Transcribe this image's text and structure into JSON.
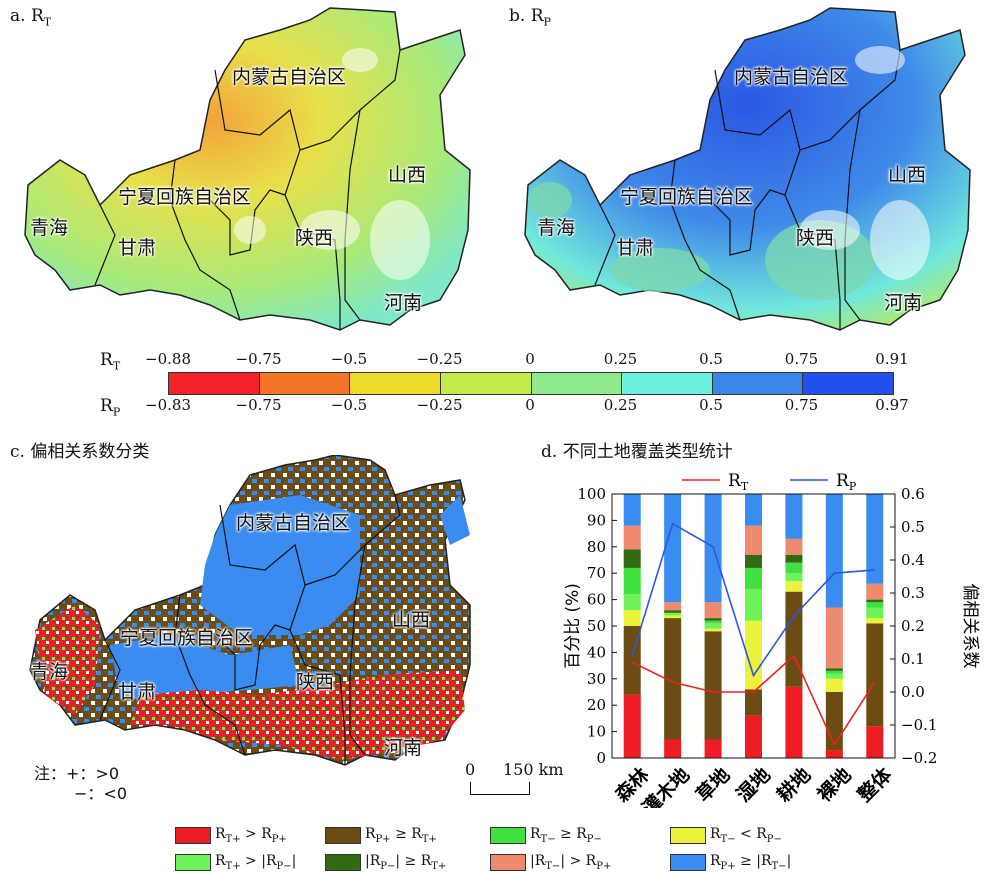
{
  "panels": {
    "a": {
      "label": "a. R",
      "sub": "T"
    },
    "b": {
      "label": "b. R",
      "sub": "P"
    },
    "c": {
      "label": "c. 偏相关系数分类"
    },
    "d": {
      "label": "d. 不同土地覆盖类型统计"
    }
  },
  "regions": {
    "neimenggu": "内蒙古自治区",
    "ningxia": "宁夏回族自治区",
    "qinghai": "青海",
    "gansu": "甘肃",
    "shaanxi": "陕西",
    "shanxi": "山西",
    "henan": "河南"
  },
  "colorbar": {
    "rt_label": "R",
    "rt_sub": "T",
    "rp_label": "R",
    "rp_sub": "P",
    "rt_ticks": [
      "−0.88",
      "−0.75",
      "−0.5",
      "−0.25",
      "0",
      "0.25",
      "0.5",
      "0.75",
      "0.91"
    ],
    "rp_ticks": [
      "−0.83",
      "−0.75",
      "−0.5",
      "−0.25",
      "0",
      "0.25",
      "0.5",
      "0.75",
      "0.97"
    ],
    "colors": [
      "#f2242a",
      "#f47428",
      "#eedc2c",
      "#c2ea4a",
      "#8eea8a",
      "#6ef0e0",
      "#3c86ea",
      "#2250ea"
    ]
  },
  "map_note": {
    "title": "注：",
    "plus": "+：>0",
    "minus": "−：<0"
  },
  "scale_bar": {
    "zero": "0",
    "value": "150 km"
  },
  "legend": [
    {
      "color": "#ee1c24",
      "text": "R",
      "sub1": "T+",
      "mid": " > R",
      "sub2": "P+"
    },
    {
      "color": "#6b4c12",
      "text": "R",
      "sub1": "P+",
      "mid": " ≥ R",
      "sub2": "T+"
    },
    {
      "color": "#3fe03f",
      "text": "R",
      "sub1": "T−",
      "mid": " ≥ R",
      "sub2": "P−"
    },
    {
      "color": "#eaf23a",
      "text": "R",
      "sub1": "T−",
      "mid": " < R",
      "sub2": "P−"
    },
    {
      "color": "#6ef25a",
      "text": "R",
      "sub1": "T+",
      "mid": " > |R",
      "sub2": "P−",
      "tail": "|"
    },
    {
      "color": "#336b14",
      "text": "|R",
      "sub1": "P−",
      "mid": "| ≥ R",
      "sub2": "T+"
    },
    {
      "color": "#ef8a6e",
      "text": "|R",
      "sub1": "T−",
      "mid": "| > R",
      "sub2": "P+"
    },
    {
      "color": "#3a8cf0",
      "text": "R",
      "sub1": "P+",
      "mid": " ≥ |R",
      "sub2": "T−",
      "tail": "|"
    }
  ],
  "chart_data": {
    "type": "bar",
    "stacked": true,
    "categories": [
      "森林",
      "灌木地",
      "草地",
      "湿地",
      "耕地",
      "裸地",
      "整体"
    ],
    "ylabel": "百分比 (%)",
    "y2label": "偏相关系数",
    "ylim": [
      0,
      100
    ],
    "y2lim": [
      -0.2,
      0.6
    ],
    "yticks": [
      "0",
      "10",
      "20",
      "30",
      "40",
      "50",
      "60",
      "70",
      "80",
      "90",
      "100"
    ],
    "y2ticks": [
      "−0.2",
      "−0.1",
      "0.0",
      "0.1",
      "0.2",
      "0.3",
      "0.4",
      "0.5",
      "0.6"
    ],
    "series": [
      {
        "name": "RT+ > RP+",
        "color": "#ee1c24",
        "values": [
          24,
          7,
          7,
          16,
          27,
          3,
          12
        ]
      },
      {
        "name": "RP+ ≥ RT+",
        "color": "#6b4c12",
        "values": [
          26,
          46,
          41,
          10,
          36,
          22,
          39
        ]
      },
      {
        "name": "RT− < RP−",
        "color": "#eaf23a",
        "values": [
          6,
          1,
          1,
          26,
          4,
          5,
          2
        ]
      },
      {
        "name": "RT+ > |RP−|",
        "color": "#6ef25a",
        "values": [
          6,
          1,
          2,
          12,
          3,
          2,
          4
        ]
      },
      {
        "name": "RT− ≥ RP−",
        "color": "#3fe03f",
        "values": [
          10,
          0,
          1,
          8,
          4,
          1,
          2
        ]
      },
      {
        "name": "|RP−| ≥ RT+",
        "color": "#336b14",
        "values": [
          7,
          1,
          1,
          5,
          3,
          1,
          1
        ]
      },
      {
        "name": "|RT−| > RP+",
        "color": "#ef8a6e",
        "values": [
          9,
          3,
          6,
          11,
          6,
          23,
          6
        ]
      },
      {
        "name": "RP+ ≥ |RT−|",
        "color": "#3a8cf0",
        "values": [
          12,
          41,
          41,
          12,
          17,
          43,
          34
        ]
      }
    ],
    "lines": [
      {
        "name": "R",
        "sub": "T",
        "color": "#ee2222",
        "values": [
          0.09,
          0.03,
          0.0,
          0.0,
          0.11,
          -0.16,
          0.03
        ]
      },
      {
        "name": "R",
        "sub": "P",
        "color": "#2d55e6",
        "values": [
          0.11,
          0.51,
          0.44,
          0.05,
          0.23,
          0.36,
          0.37
        ]
      }
    ]
  }
}
